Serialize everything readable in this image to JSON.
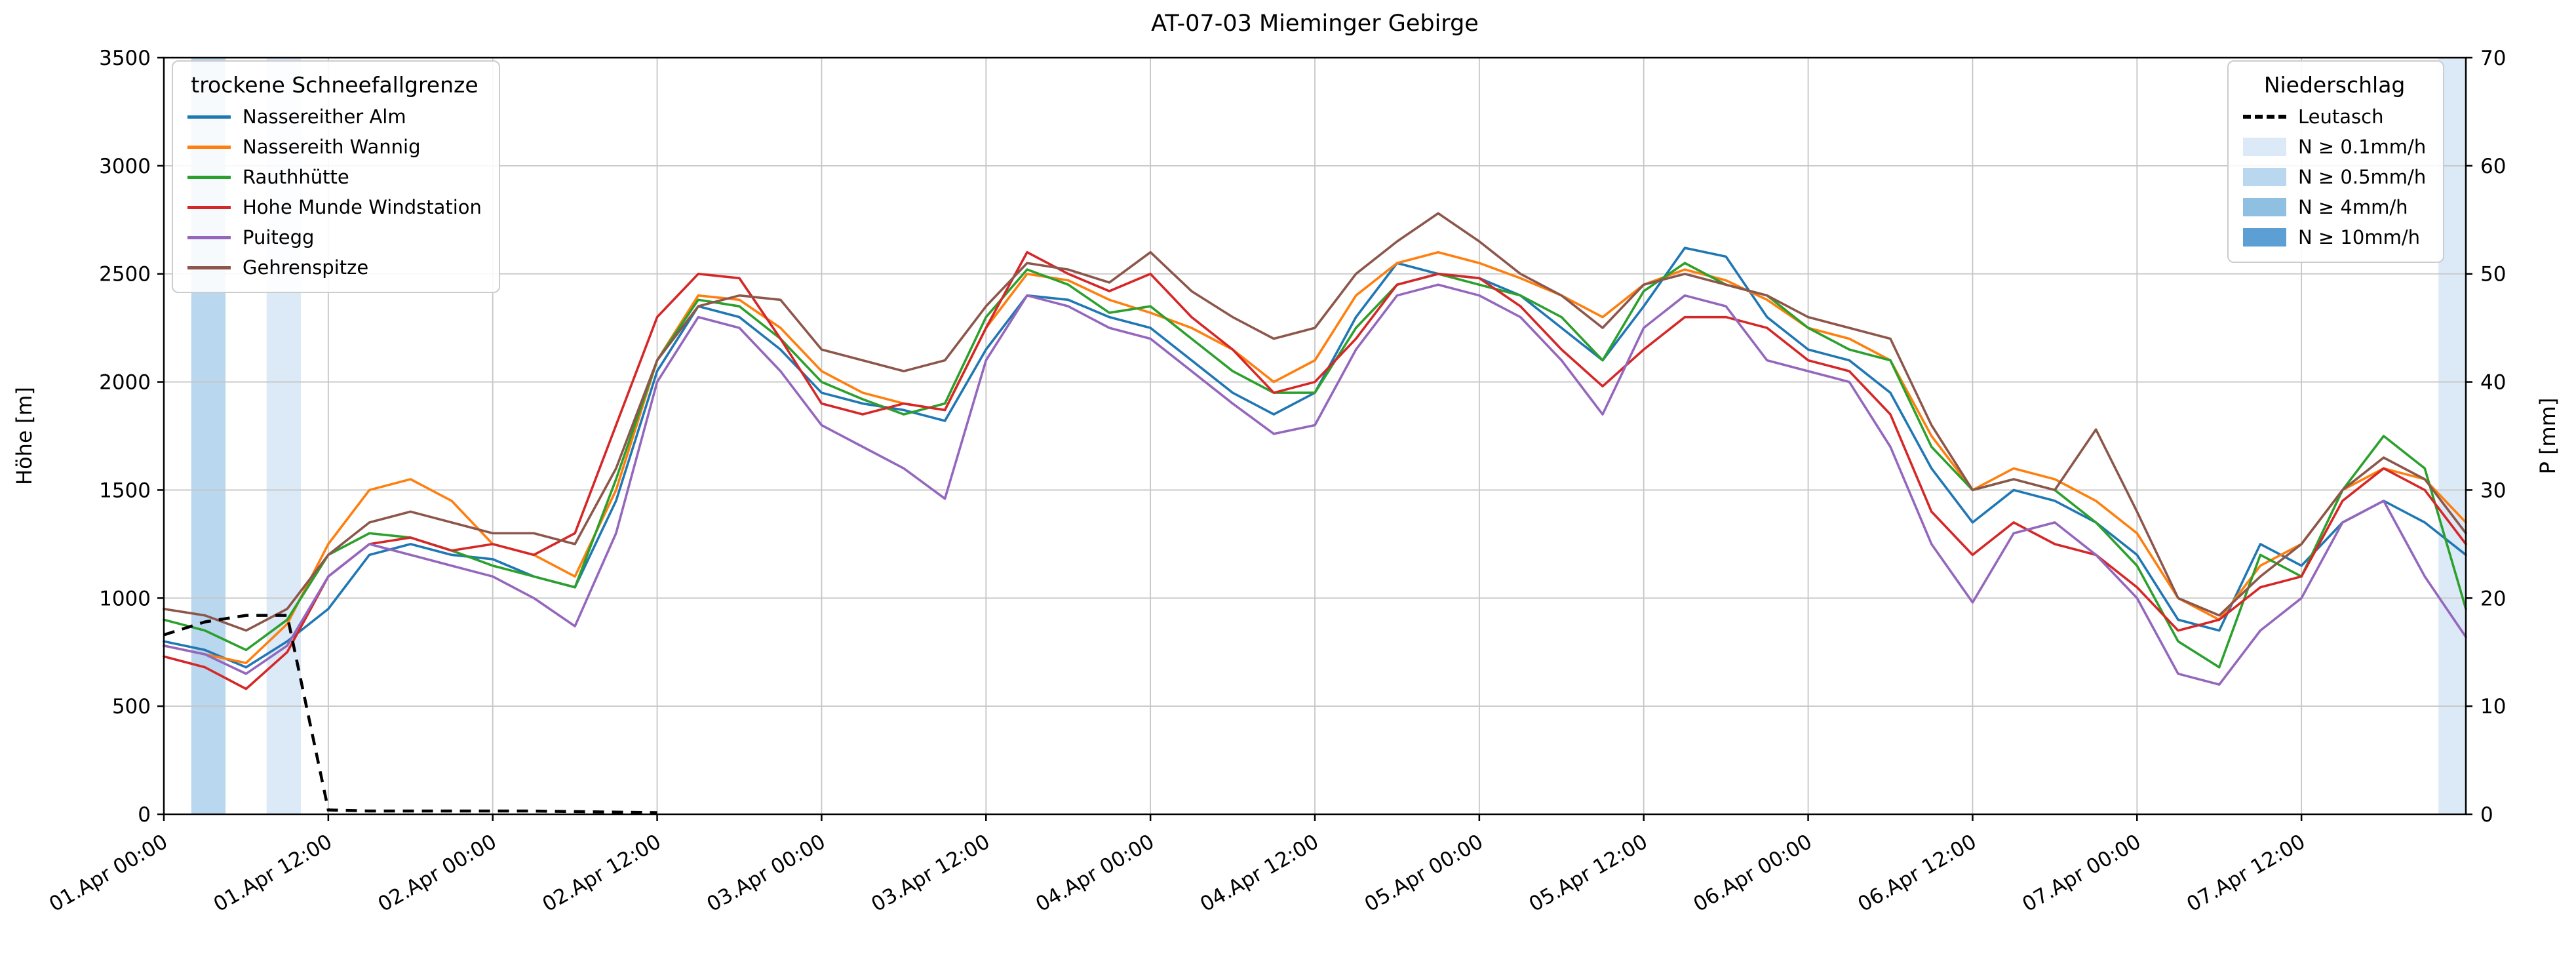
{
  "figure": {
    "title": "AT-07-03 Mieminger Gebirge",
    "background": "#ffffff"
  },
  "chart_data": {
    "type": "line",
    "title": "AT-07-03 Mieminger Gebirge",
    "grid": true,
    "x_start_label": "01.Apr 00:00",
    "x_hours_step": 3,
    "x_range_hours": [
      0,
      168
    ],
    "x_ticks": [
      {
        "h": 0,
        "label": "01.Apr 00:00"
      },
      {
        "h": 12,
        "label": "01.Apr 12:00"
      },
      {
        "h": 24,
        "label": "02.Apr 00:00"
      },
      {
        "h": 36,
        "label": "02.Apr 12:00"
      },
      {
        "h": 48,
        "label": "03.Apr 00:00"
      },
      {
        "h": 60,
        "label": "03.Apr 12:00"
      },
      {
        "h": 72,
        "label": "04.Apr 00:00"
      },
      {
        "h": 84,
        "label": "04.Apr 12:00"
      },
      {
        "h": 96,
        "label": "05.Apr 00:00"
      },
      {
        "h": 108,
        "label": "05.Apr 12:00"
      },
      {
        "h": 120,
        "label": "06.Apr 00:00"
      },
      {
        "h": 132,
        "label": "06.Apr 12:00"
      },
      {
        "h": 144,
        "label": "07.Apr 00:00"
      },
      {
        "h": 156,
        "label": "07.Apr 12:00"
      }
    ],
    "y_left": {
      "label": "Höhe [m]",
      "min": 0,
      "max": 3500,
      "ticks": [
        0,
        500,
        1000,
        1500,
        2000,
        2500,
        3000,
        3500
      ]
    },
    "y_right": {
      "label": "P [mm]",
      "min": 0,
      "max": 70,
      "ticks": [
        0,
        10,
        20,
        30,
        40,
        50,
        60,
        70
      ]
    },
    "legend_left_title": "trockene Schneefallgrenze",
    "legend_right_title": "Niederschlag",
    "series": [
      {
        "name": "Nassereither Alm",
        "color": "#1f77b4",
        "values": [
          800,
          760,
          680,
          800,
          950,
          1200,
          1250,
          1200,
          1180,
          1100,
          1050,
          1450,
          2050,
          2350,
          2300,
          2150,
          1950,
          1900,
          1870,
          1820,
          2150,
          2400,
          2380,
          2300,
          2250,
          2100,
          1950,
          1850,
          1950,
          2300,
          2550,
          2500,
          2480,
          2400,
          2250,
          2100,
          2350,
          2620,
          2580,
          2300,
          2150,
          2100,
          1950,
          1600,
          1350,
          1500,
          1450,
          1350,
          1200,
          900,
          850,
          1250,
          1150,
          1350,
          1450,
          1350,
          1200
        ]
      },
      {
        "name": "Nassereith Wannig",
        "color": "#ff7f0e",
        "values": [
          780,
          740,
          700,
          880,
          1250,
          1500,
          1550,
          1450,
          1250,
          1200,
          1100,
          1500,
          2100,
          2400,
          2380,
          2250,
          2050,
          1950,
          1900,
          1870,
          2250,
          2500,
          2470,
          2380,
          2320,
          2250,
          2150,
          2000,
          2100,
          2400,
          2550,
          2600,
          2550,
          2480,
          2400,
          2300,
          2450,
          2520,
          2470,
          2380,
          2250,
          2200,
          2100,
          1750,
          1500,
          1600,
          1550,
          1450,
          1300,
          1000,
          900,
          1150,
          1250,
          1500,
          1600,
          1550,
          1350
        ]
      },
      {
        "name": "Rauthhütte",
        "color": "#2ca02c",
        "values": [
          900,
          850,
          760,
          900,
          1200,
          1300,
          1280,
          1220,
          1150,
          1100,
          1050,
          1550,
          2100,
          2380,
          2350,
          2200,
          2000,
          1920,
          1850,
          1900,
          2300,
          2520,
          2450,
          2320,
          2350,
          2200,
          2050,
          1950,
          1950,
          2250,
          2450,
          2500,
          2450,
          2400,
          2300,
          2100,
          2420,
          2550,
          2450,
          2400,
          2250,
          2150,
          2100,
          1700,
          1500,
          1550,
          1500,
          1350,
          1150,
          800,
          680,
          1200,
          1100,
          1500,
          1750,
          1600,
          950
        ]
      },
      {
        "name": "Hohe Munde Windstation",
        "color": "#d62728",
        "values": [
          730,
          680,
          580,
          750,
          1100,
          1250,
          1280,
          1220,
          1250,
          1200,
          1300,
          1800,
          2300,
          2500,
          2480,
          2200,
          1900,
          1850,
          1900,
          1870,
          2250,
          2600,
          2500,
          2420,
          2500,
          2300,
          2150,
          1950,
          2000,
          2200,
          2450,
          2500,
          2480,
          2350,
          2150,
          1980,
          2150,
          2300,
          2300,
          2250,
          2100,
          2050,
          1850,
          1400,
          1200,
          1350,
          1250,
          1200,
          1050,
          850,
          900,
          1050,
          1100,
          1450,
          1600,
          1500,
          1250
        ]
      },
      {
        "name": "Puitegg",
        "color": "#9467bd",
        "values": [
          780,
          740,
          650,
          780,
          1100,
          1250,
          1200,
          1150,
          1100,
          1000,
          870,
          1300,
          2000,
          2300,
          2250,
          2050,
          1800,
          1700,
          1600,
          1460,
          2100,
          2400,
          2350,
          2250,
          2200,
          2050,
          1900,
          1760,
          1800,
          2150,
          2400,
          2450,
          2400,
          2300,
          2100,
          1850,
          2250,
          2400,
          2350,
          2100,
          2050,
          2000,
          1700,
          1250,
          980,
          1300,
          1350,
          1200,
          1000,
          650,
          600,
          850,
          1000,
          1350,
          1450,
          1100,
          820
        ]
      },
      {
        "name": "Gehrenspitze",
        "color": "#8c564b",
        "values": [
          950,
          920,
          850,
          950,
          1200,
          1350,
          1400,
          1350,
          1300,
          1300,
          1250,
          1600,
          2100,
          2350,
          2400,
          2380,
          2150,
          2100,
          2050,
          2100,
          2350,
          2550,
          2520,
          2460,
          2600,
          2420,
          2300,
          2200,
          2250,
          2500,
          2650,
          2780,
          2650,
          2500,
          2400,
          2250,
          2450,
          2500,
          2450,
          2400,
          2300,
          2250,
          2200,
          1800,
          1500,
          1550,
          1500,
          1780,
          1400,
          1000,
          920,
          1100,
          1250,
          1500,
          1650,
          1550,
          1300
        ]
      }
    ],
    "leutasch": {
      "name": "Leutasch",
      "color": "#000000",
      "axis": "right",
      "dashed": true,
      "hours": [
        0,
        3,
        6,
        9,
        12,
        15,
        18,
        21,
        24,
        27,
        30,
        33,
        36
      ],
      "values_mm": [
        16.6,
        17.8,
        18.4,
        18.4,
        0.4,
        0.3,
        0.3,
        0.3,
        0.3,
        0.3,
        0.25,
        0.2,
        0.15
      ]
    },
    "precip_levels": [
      {
        "label": "N ≥ 0.1mm/h",
        "color": "#dce9f6"
      },
      {
        "label": "N ≥ 0.5mm/h",
        "color": "#b9d7ee"
      },
      {
        "label": "N ≥ 4mm/h",
        "color": "#8fc0e2"
      },
      {
        "label": "N ≥ 10mm/h",
        "color": "#5b9fd4"
      }
    ],
    "precip_bands": [
      {
        "from_h": 2.0,
        "to_h": 4.5,
        "level": 1
      },
      {
        "from_h": 7.5,
        "to_h": 10.0,
        "level": 0
      },
      {
        "from_h": 166.0,
        "to_h": 168.0,
        "level": 0
      }
    ]
  }
}
